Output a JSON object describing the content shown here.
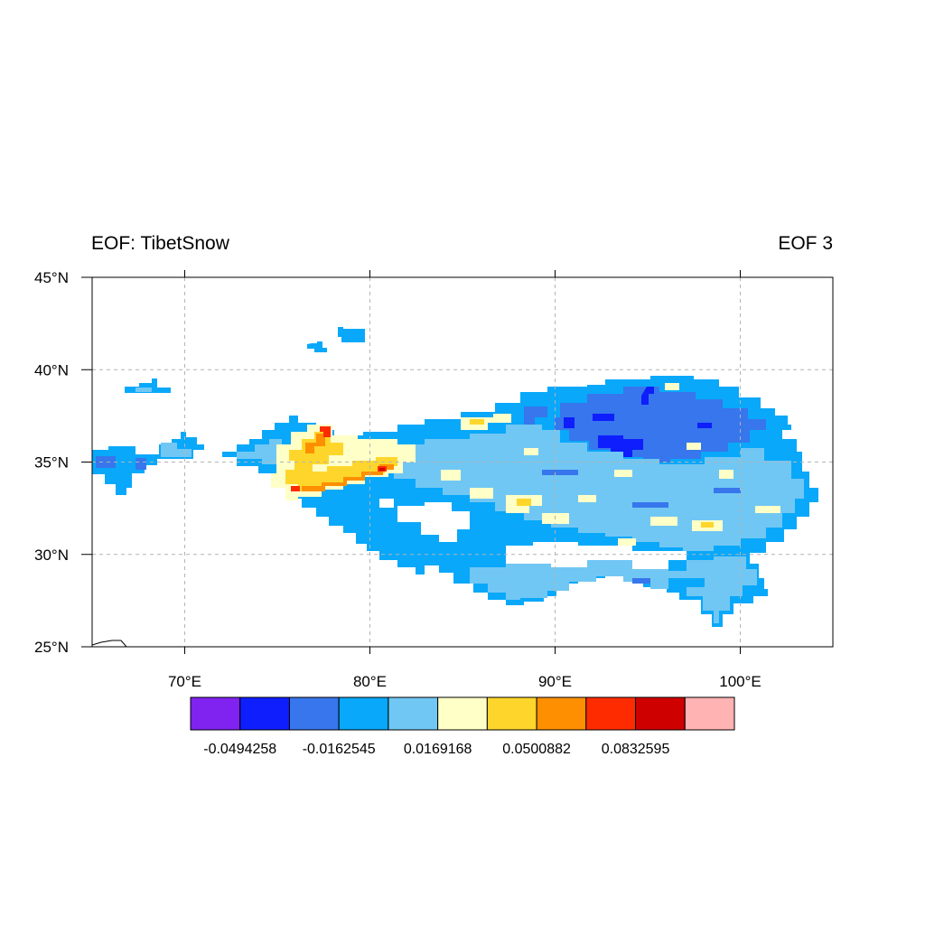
{
  "title_left": "EOF: TibetSnow",
  "title_right": "EOF 3",
  "map": {
    "lon_range": [
      65,
      105
    ],
    "lat_range": [
      25,
      45
    ],
    "lon_ticks": [
      {
        "value": 70,
        "label": "70°E"
      },
      {
        "value": 80,
        "label": "80°E"
      },
      {
        "value": 90,
        "label": "90°E"
      },
      {
        "value": 100,
        "label": "100°E"
      }
    ],
    "lat_ticks": [
      {
        "value": 25,
        "label": "25°N"
      },
      {
        "value": 30,
        "label": "30°N"
      },
      {
        "value": 35,
        "label": "35°N"
      },
      {
        "value": 40,
        "label": "40°N"
      },
      {
        "value": 45,
        "label": "45°N"
      }
    ],
    "grid": true,
    "grid_color": "#b4b4b4",
    "background": "#ffffff"
  },
  "colorbar": {
    "colors": [
      "#8022f0",
      "#0e1efc",
      "#3776ec",
      "#09a8fa",
      "#71c7f3",
      "#ffffc8",
      "#fed62b",
      "#fe8f00",
      "#fe2b00",
      "#cf0000",
      "#ffb3b3"
    ],
    "labels": [
      "-0.0494258",
      "-0.0162545",
      "0.0169168",
      "0.0500882",
      "0.0832595"
    ]
  }
}
